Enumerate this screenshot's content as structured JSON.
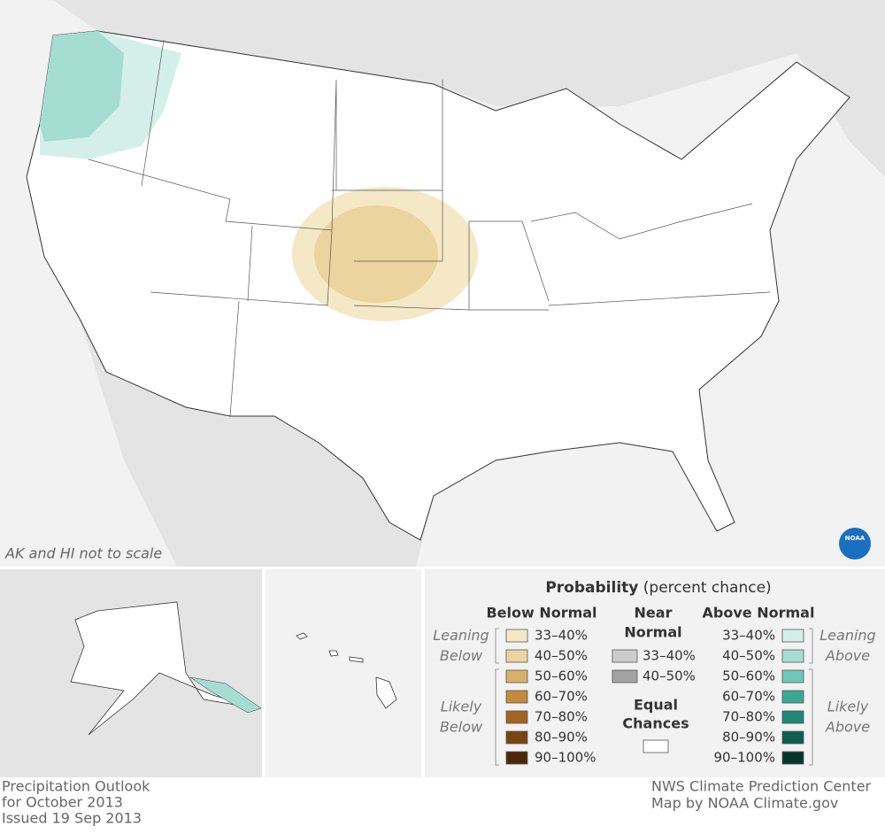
{
  "map": {
    "note": "AK and HI not to scale",
    "logo": "NOAA"
  },
  "legend": {
    "title": "Probability",
    "subtitle": "(percent chance)",
    "below": {
      "heading": "Below Normal",
      "leaning": [
        "Leaning",
        "Below"
      ],
      "likely": [
        "Likely",
        "Below"
      ],
      "items": [
        {
          "label": "33–40%",
          "color": "#f5e8c6"
        },
        {
          "label": "40–50%",
          "color": "#ecd49e"
        },
        {
          "label": "50–60%",
          "color": "#d8b06a"
        },
        {
          "label": "60–70%",
          "color": "#c48a3a"
        },
        {
          "label": "70–80%",
          "color": "#a26420"
        },
        {
          "label": "80–90%",
          "color": "#7a4410"
        },
        {
          "label": "90–100%",
          "color": "#4c2806"
        }
      ]
    },
    "near": {
      "heading": [
        "Near",
        "Normal"
      ],
      "items": [
        {
          "label": "33–40%",
          "color": "#cccccc"
        },
        {
          "label": "40–50%",
          "color": "#a3a3a3"
        }
      ]
    },
    "equal": {
      "heading": [
        "Equal",
        "Chances"
      ],
      "color": "#ffffff"
    },
    "above": {
      "heading": "Above Normal",
      "leaning": [
        "Leaning",
        "Above"
      ],
      "likely": [
        "Likely",
        "Above"
      ],
      "items": [
        {
          "label": "33–40%",
          "color": "#d4efe9"
        },
        {
          "label": "40–50%",
          "color": "#a6ddd2"
        },
        {
          "label": "50–60%",
          "color": "#6ec8b7"
        },
        {
          "label": "60–70%",
          "color": "#3ba896"
        },
        {
          "label": "70–80%",
          "color": "#1f8776"
        },
        {
          "label": "80–90%",
          "color": "#0f5e50"
        },
        {
          "label": "90–100%",
          "color": "#05362d"
        }
      ]
    }
  },
  "footer": {
    "left": [
      "Precipitation Outlook",
      "for October 2013",
      "Issued 19 Sep 2013"
    ],
    "right": [
      "NWS Climate Prediction Center",
      "Map by NOAA Climate.gov"
    ]
  }
}
